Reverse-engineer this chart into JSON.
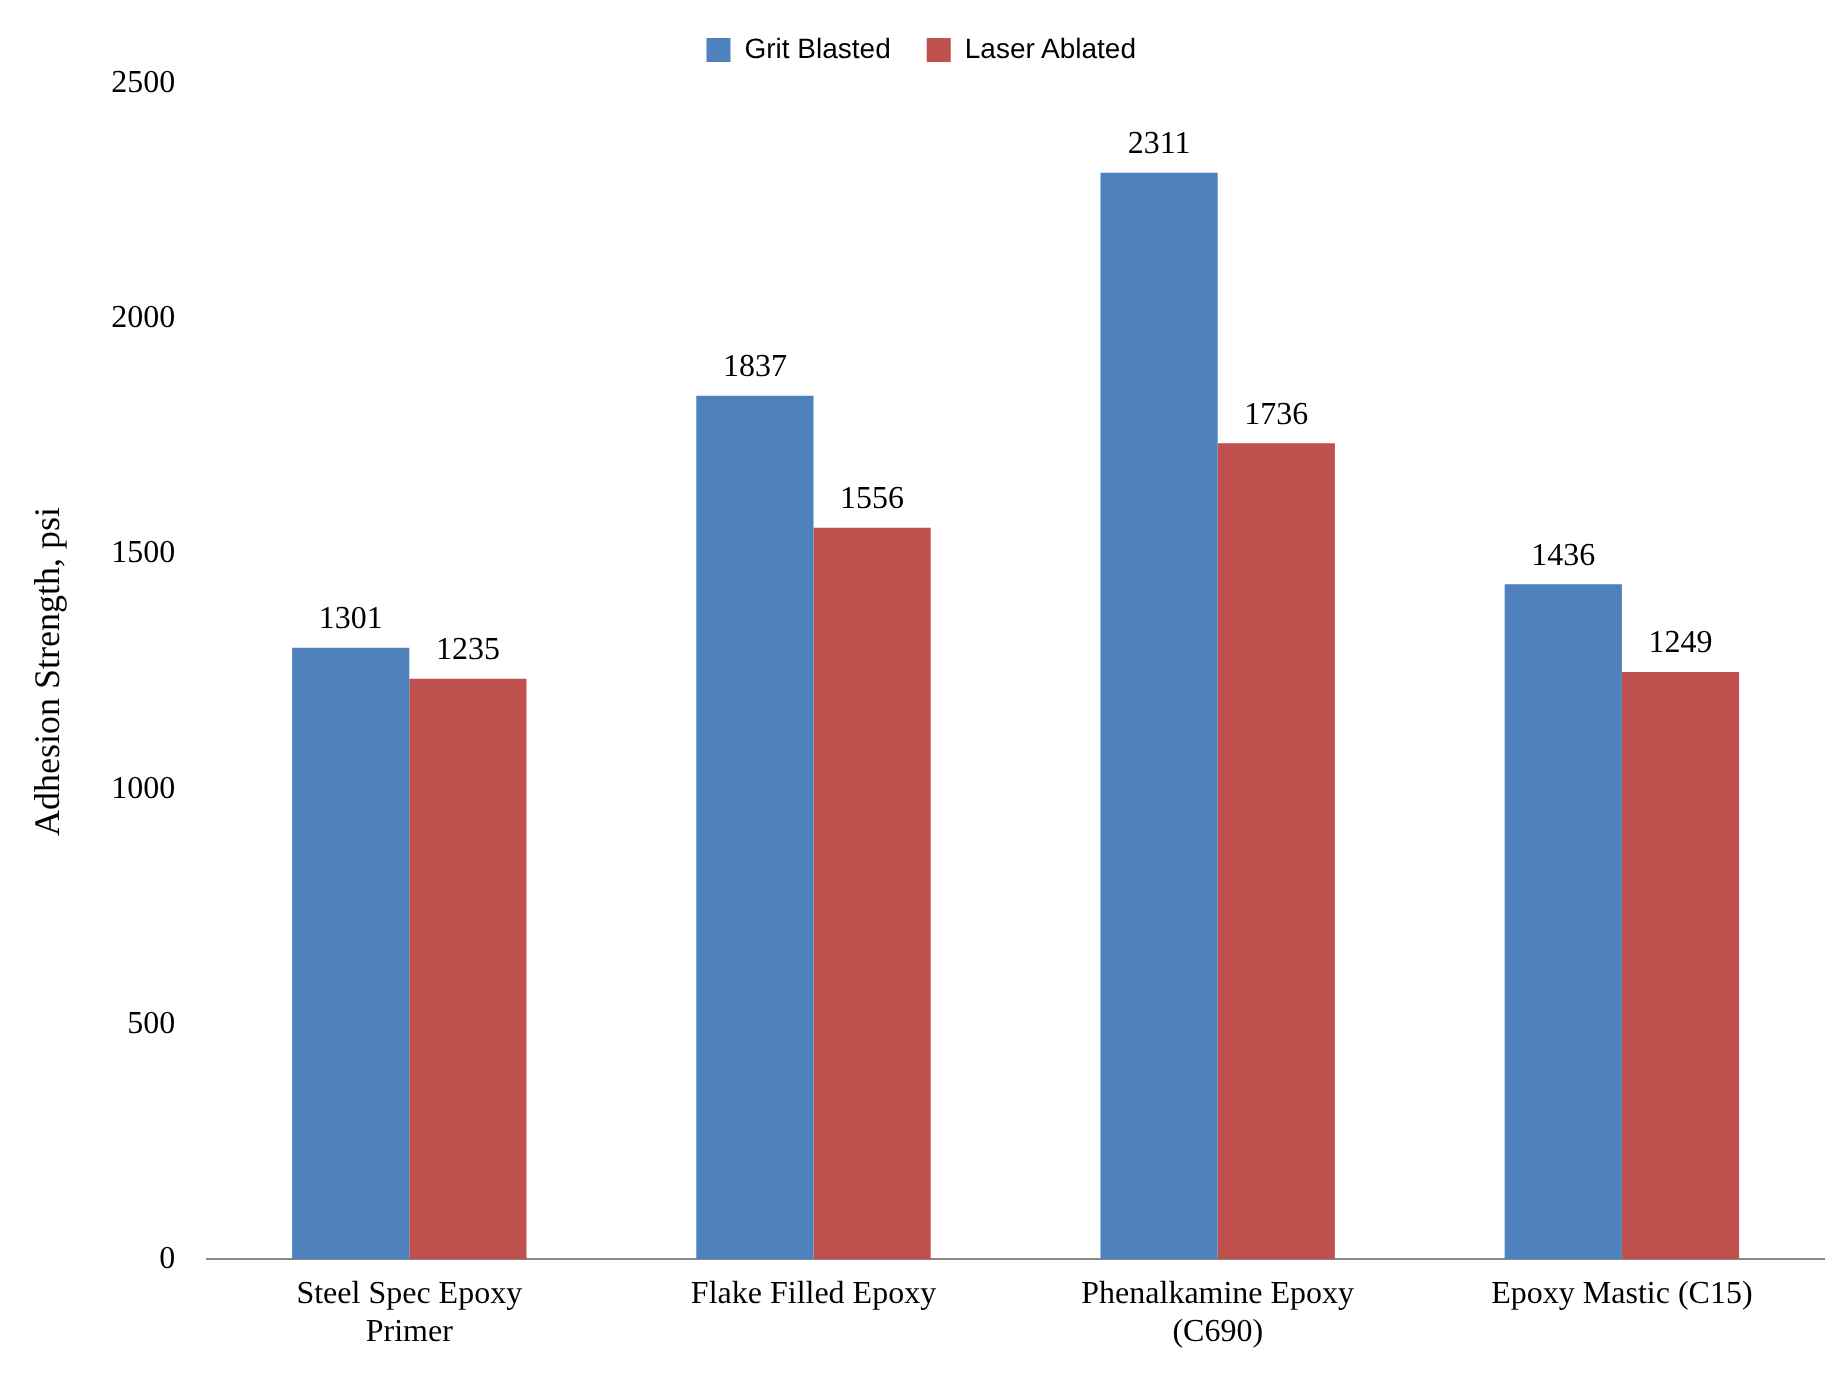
{
  "chart_data": {
    "type": "bar",
    "ylabel": "Adhesion Strength, psi",
    "categories": [
      "Steel Spec Epoxy Primer",
      "Flake Filled Epoxy",
      "Phenalkamine Epoxy (C690)",
      "Epoxy Mastic (C15)"
    ],
    "series": [
      {
        "name": "Grit Blasted",
        "color": "#4f81bd",
        "values": [
          1301,
          1837,
          2311,
          1436
        ]
      },
      {
        "name": "Laser Ablated",
        "color": "#c0504d",
        "values": [
          1235,
          1556,
          1736,
          1249
        ]
      }
    ],
    "ylim": [
      0,
      2500
    ],
    "yticks": [
      0,
      500,
      1000,
      1500,
      2000,
      2500
    ],
    "grid": false,
    "legend": "top",
    "data_labels": true
  }
}
